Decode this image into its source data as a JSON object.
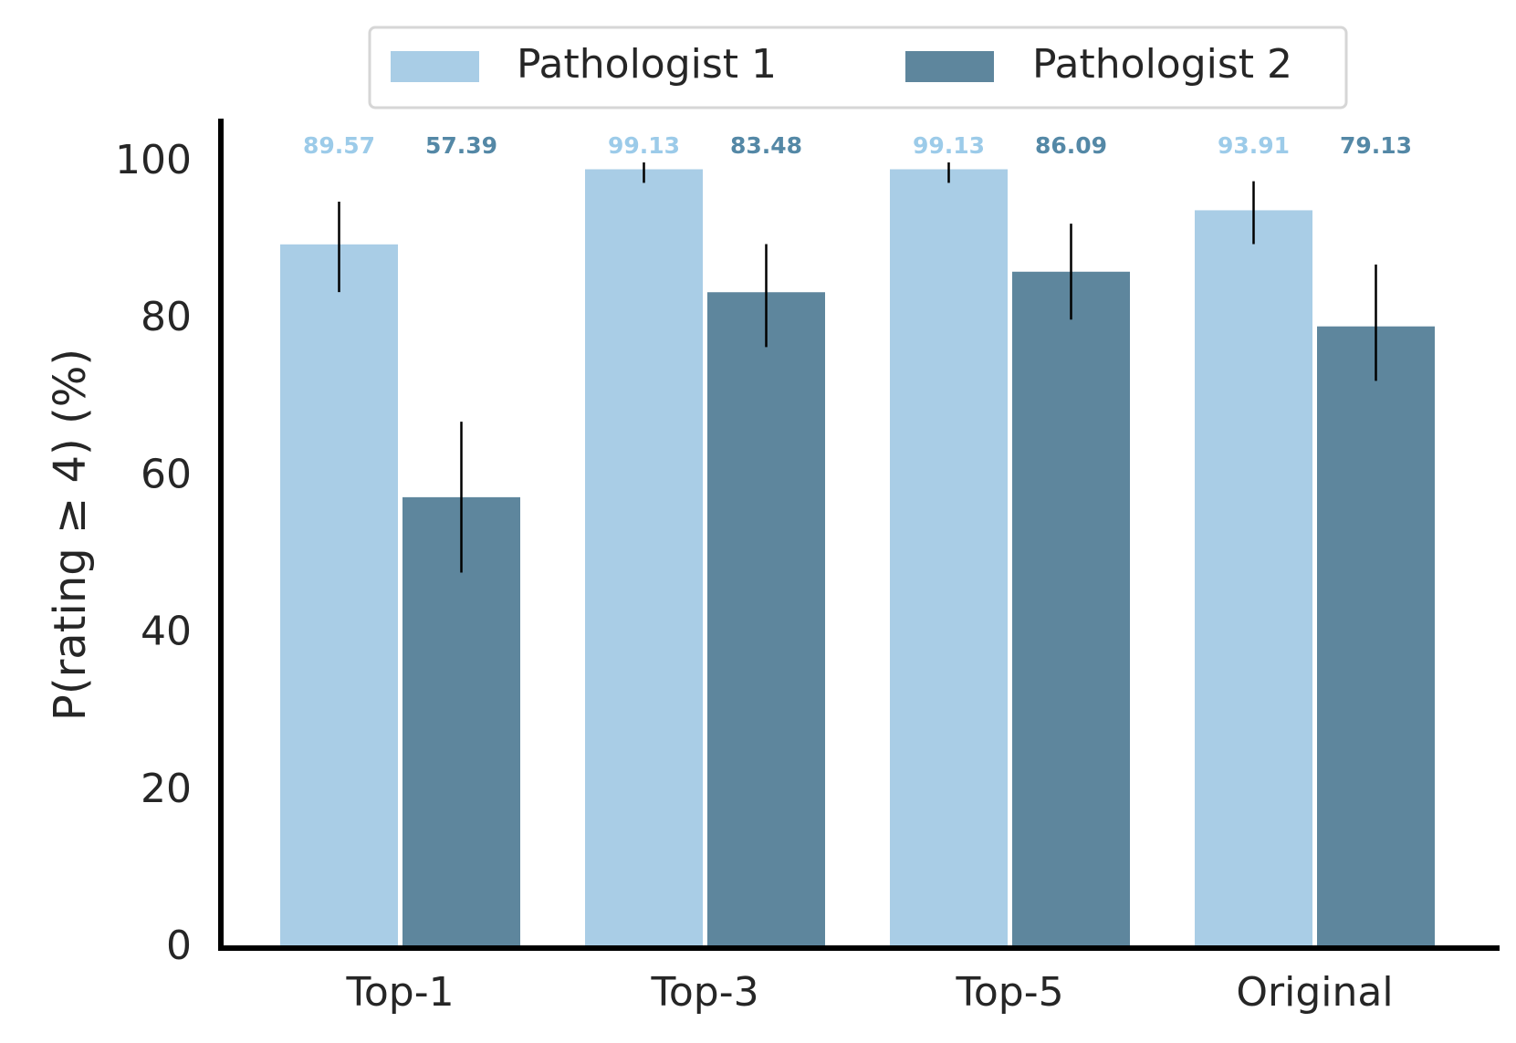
{
  "chart_data": {
    "type": "bar",
    "title": "",
    "xlabel": "",
    "ylabel": "P(rating ≥ 4) (%)",
    "categories": [
      "Top-1",
      "Top-3",
      "Top-5",
      "Original"
    ],
    "series": [
      {
        "name": "Pathologist 1",
        "color": "#a9cde6",
        "label_color": "#9ccbe9",
        "values": [
          89.57,
          99.13,
          99.13,
          93.91
        ],
        "value_labels": [
          "89.57",
          "99.13",
          "99.13",
          "93.91"
        ],
        "err_low": [
          83.5,
          97.4,
          97.4,
          89.6
        ],
        "err_high": [
          95.0,
          100.0,
          100.0,
          97.6
        ]
      },
      {
        "name": "Pathologist 2",
        "color": "#5e869d",
        "label_color": "#5488a6",
        "values": [
          57.39,
          83.48,
          86.09,
          79.13
        ],
        "value_labels": [
          "57.39",
          "83.48",
          "86.09",
          "79.13"
        ],
        "err_low": [
          47.8,
          76.5,
          80.0,
          72.2
        ],
        "err_high": [
          67.0,
          89.6,
          92.2,
          87.0
        ]
      }
    ],
    "ylim": [
      0,
      105
    ],
    "yticks": [
      0,
      20,
      40,
      60,
      80,
      100
    ],
    "ytick_labels": [
      "0",
      "20",
      "40",
      "60",
      "80",
      "100"
    ],
    "grid": false,
    "legend_position": "top-center"
  }
}
